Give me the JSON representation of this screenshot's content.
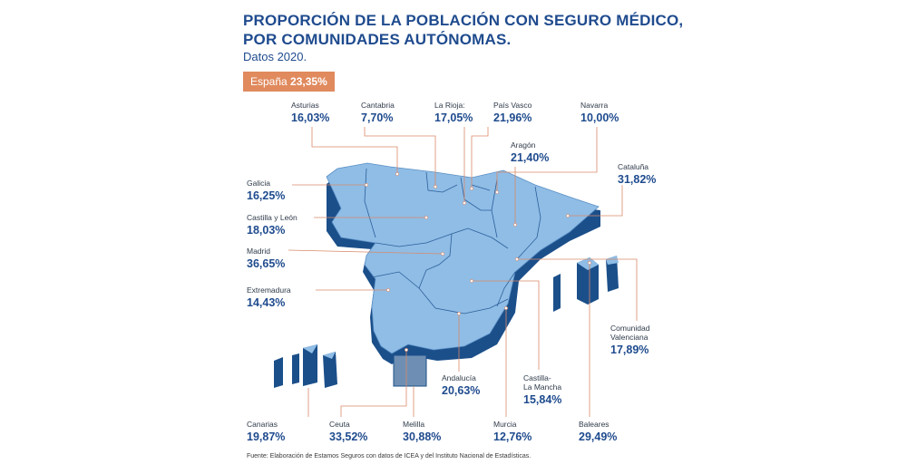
{
  "title_line1": "PROPORCIÓN DE LA POBLACIÓN CON SEGURO MÉDICO,",
  "title_line2": "POR COMUNIDADES AUTÓNOMAS.",
  "subtitle": "Datos 2020.",
  "national": {
    "label": "España",
    "value": "23,35%"
  },
  "colors": {
    "title": "#1f4b8e",
    "badge": "#e08a5e",
    "map_top": "#8fbde6",
    "map_side": "#1b4f8a",
    "leader": "#d98a6a"
  },
  "regions": {
    "asturias": {
      "name": "Asturias",
      "value": "16,03%"
    },
    "cantabria": {
      "name": "Cantabria",
      "value": "7,70%"
    },
    "larioja": {
      "name": "La Rioja:",
      "value": "17,05%"
    },
    "paisvasco": {
      "name": "País Vasco",
      "value": "21,96%"
    },
    "navarra": {
      "name": "Navarra",
      "value": "10,00%"
    },
    "aragon": {
      "name": "Aragón",
      "value": "21,40%"
    },
    "cataluna": {
      "name": "Cataluña",
      "value": "31,82%"
    },
    "galicia": {
      "name": "Galicia",
      "value": "16,25%"
    },
    "castillaleon": {
      "name": "Castilla y León",
      "value": "18,03%"
    },
    "madrid": {
      "name": "Madrid",
      "value": "36,65%"
    },
    "extremadura": {
      "name": "Extremadura",
      "value": "14,43%"
    },
    "valenciana": {
      "name1": "Comunidad",
      "name2": "Valenciana",
      "value": "17,89%"
    },
    "andalucia": {
      "name": "Andalucía",
      "value": "20,63%"
    },
    "castillamancha": {
      "name1": "Castilla-",
      "name2": "La Mancha",
      "value": "15,84%"
    },
    "canarias": {
      "name": "Canarias",
      "value": "19,87%"
    },
    "ceuta": {
      "name": "Ceuta",
      "value": "33,52%"
    },
    "melilla": {
      "name": "Melilla",
      "value": "30,88%"
    },
    "murcia": {
      "name": "Murcia",
      "value": "12,76%"
    },
    "baleares": {
      "name": "Baleares",
      "value": "29,49%"
    }
  },
  "source": "Fuente: Elaboración de Estamos Seguros con datos de ICEA y del Instituto Nacional de Estadísticas."
}
